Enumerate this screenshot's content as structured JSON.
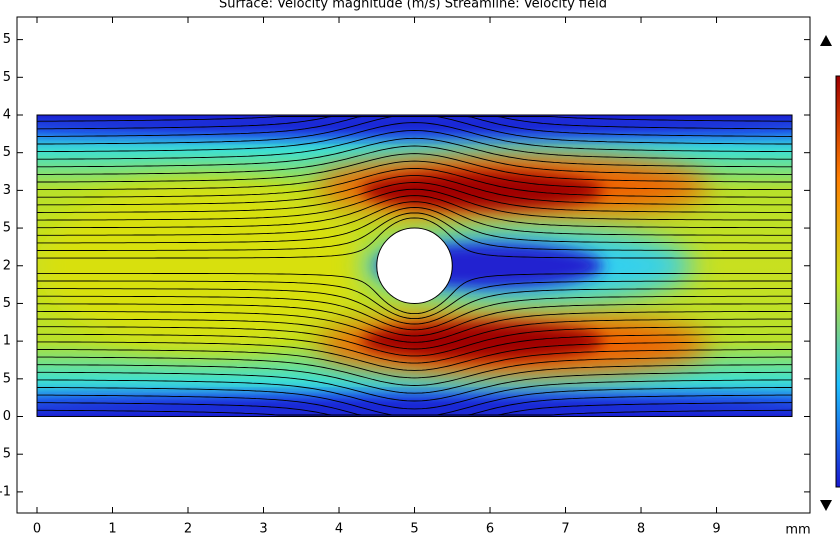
{
  "chart_data": {
    "type": "surface",
    "title": "Surface: Velocity magnitude (m/s)  Streamline: Velocity field",
    "x_unit": "mm",
    "xlim": [
      -0.265,
      10.238
    ],
    "ylim": [
      -1.28,
      5.3
    ],
    "xticks": [
      0,
      1,
      2,
      3,
      4,
      5,
      6,
      7,
      8,
      9
    ],
    "yticks": [
      5,
      {
        "value": 4.5,
        "label": "5"
      },
      4,
      {
        "value": 3.5,
        "label": "5"
      },
      3,
      {
        "value": 2.5,
        "label": "5"
      },
      2,
      {
        "value": 1.5,
        "label": "5"
      },
      1,
      {
        "value": 0.5,
        "label": "5"
      },
      0,
      {
        "value": -0.5,
        "label": "5"
      },
      -1
    ]
  }
}
